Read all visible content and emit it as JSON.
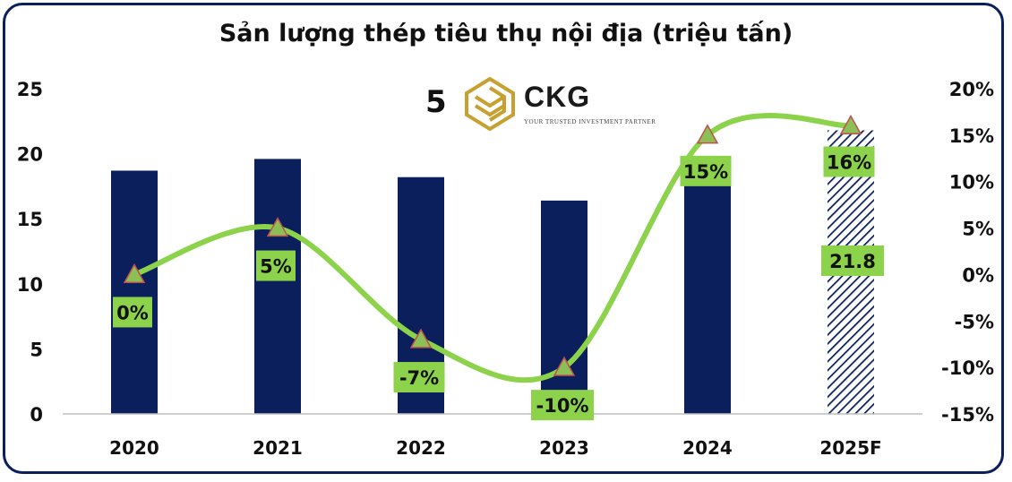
{
  "chart_data": {
    "type": "bar",
    "title": "Sản lượng thép tiêu thụ nội địa (triệu tấn)",
    "categories": [
      "2020",
      "2021",
      "2022",
      "2023",
      "2024",
      "2025F"
    ],
    "series": [
      {
        "type": "bar",
        "axis": "left",
        "values": [
          18.7,
          19.6,
          18.2,
          16.4,
          19.0,
          21.8
        ],
        "color": "#0a1f5c",
        "hatched_categories": [
          "2025F"
        ],
        "data_labels": [
          "",
          "",
          "",
          "",
          "",
          "21.8"
        ]
      },
      {
        "type": "line",
        "axis": "right",
        "values": [
          0,
          5,
          -7,
          -10,
          15,
          16
        ],
        "color": "#8cd24a",
        "marker": "triangle",
        "data_labels": [
          "0%",
          "5%",
          "-7%",
          "-10%",
          "15%",
          "16%"
        ]
      }
    ],
    "y_left": {
      "min": 0,
      "max": 25,
      "ticks": [
        "0",
        "5",
        "10",
        "15",
        "20",
        "25"
      ]
    },
    "y_right": {
      "min": -15,
      "max": 20,
      "ticks": [
        "-15%",
        "-10%",
        "-5%",
        "0%",
        "5%",
        "10%",
        "15%",
        "20%"
      ]
    },
    "grid": false,
    "legend": "none"
  },
  "logo": {
    "number": "5",
    "name": "CKG",
    "tagline": "YOUR TRUSTED INVESTMENT PARTNER",
    "color": "#c8a030"
  }
}
